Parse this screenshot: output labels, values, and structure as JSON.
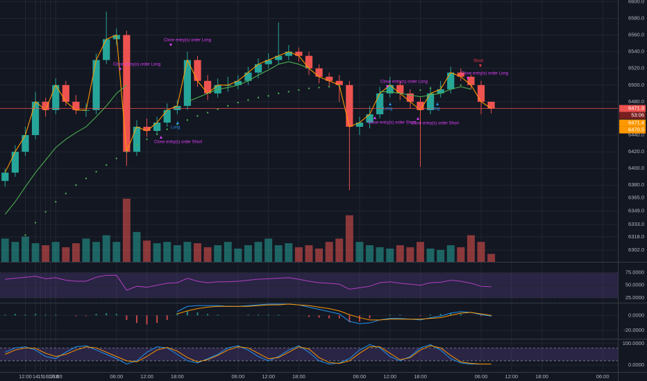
{
  "chart_data": [
    {
      "type": "candlestick",
      "x": [
        8,
        10,
        12,
        14,
        16,
        18,
        20,
        22,
        24,
        26,
        28,
        30,
        32,
        34,
        36,
        38,
        40,
        42,
        44,
        46,
        48,
        50,
        52,
        54,
        56,
        58,
        60,
        62,
        64,
        66,
        68,
        70,
        72,
        74,
        76,
        78,
        80,
        82,
        84,
        86,
        88,
        90,
        92,
        94,
        96,
        98,
        100,
        102,
        104
      ],
      "open": [
        6385,
        6395,
        6420,
        6440,
        6480,
        6470,
        6500,
        6480,
        6470,
        6470,
        6530,
        6555,
        6560,
        6420,
        6450,
        6445,
        6455,
        6470,
        6475,
        6530,
        6505,
        6490,
        6500,
        6500,
        6505,
        6515,
        6525,
        6530,
        6535,
        6540,
        6535,
        6520,
        6510,
        6505,
        6500,
        6450,
        6455,
        6465,
        6490,
        6500,
        6490,
        6480,
        6470,
        6490,
        6495,
        6515,
        6510,
        6500,
        6480
      ],
      "high": [
        6400,
        6428,
        6450,
        6492,
        6485,
        6508,
        6505,
        6488,
        6478,
        6538,
        6588,
        6568,
        6565,
        6458,
        6460,
        6462,
        6478,
        6482,
        6540,
        6535,
        6512,
        6508,
        6510,
        6512,
        6522,
        6532,
        6538,
        6575,
        6548,
        6545,
        6540,
        6525,
        6515,
        6512,
        6505,
        6462,
        6475,
        6498,
        6510,
        6505,
        6495,
        6485,
        6498,
        6505,
        6522,
        6520,
        6512,
        6505,
        6478
      ],
      "low": [
        6378,
        6390,
        6415,
        6435,
        6462,
        6465,
        6475,
        6465,
        6462,
        6465,
        6525,
        6548,
        6403,
        6415,
        6438,
        6440,
        6450,
        6465,
        6470,
        6498,
        6482,
        6485,
        6492,
        6495,
        6500,
        6508,
        6520,
        6525,
        6530,
        6528,
        6512,
        6502,
        6498,
        6480,
        6374,
        6440,
        6448,
        6460,
        6485,
        6482,
        6472,
        6402,
        6465,
        6485,
        6490,
        6505,
        6495,
        6465,
        6466
      ],
      "close": [
        6395,
        6420,
        6440,
        6480,
        6470,
        6500,
        6480,
        6470,
        6470,
        6530,
        6555,
        6560,
        6420,
        6450,
        6445,
        6455,
        6470,
        6475,
        6530,
        6505,
        6490,
        6500,
        6500,
        6505,
        6515,
        6525,
        6530,
        6535,
        6540,
        6535,
        6520,
        6510,
        6505,
        6500,
        6450,
        6455,
        6465,
        6490,
        6500,
        6490,
        6480,
        6470,
        6490,
        6495,
        6515,
        6510,
        6500,
        6480,
        6472
      ],
      "up_color": "#26a69a",
      "down_color": "#ef5350",
      "lines": [
        {
          "color": "#ff9800",
          "style": "solid",
          "values": [
            6395,
            6420,
            6440,
            6480,
            6470,
            6500,
            6480,
            6470,
            6470,
            6530,
            6555,
            6560,
            6420,
            6450,
            6445,
            6455,
            6470,
            6475,
            6530,
            6505,
            6490,
            6500,
            6500,
            6505,
            6515,
            6525,
            6530,
            6535,
            6540,
            6535,
            6520,
            6510,
            6505,
            6500,
            6450,
            6455,
            6465,
            6490,
            6500,
            6490,
            6480,
            6470,
            6490,
            6495,
            6515,
            6510,
            6500,
            6480,
            6472
          ]
        },
        {
          "color": "#4caf50",
          "style": "solid",
          "values": [
            6345,
            6360,
            6378,
            6395,
            6410,
            6425,
            6435,
            6443,
            6450,
            6462,
            6475,
            6490,
            6500,
            null,
            null,
            null,
            null,
            null,
            6480,
            6485,
            6490,
            6495,
            6497,
            6500,
            6505,
            6512,
            6518,
            6525,
            6528,
            6525,
            6520,
            null,
            null,
            null,
            null,
            null,
            null,
            6492,
            6492,
            6490,
            6488,
            6486,
            6488,
            6490,
            6495,
            6498,
            6495,
            null,
            null
          ]
        },
        {
          "color": "#4caf50",
          "style": "dotted",
          "values": [
            null,
            null,
            6320,
            6335,
            6348,
            6360,
            6370,
            6380,
            6388,
            6396,
            6404,
            6412,
            6420,
            6428,
            6435,
            6441,
            6447,
            6453,
            6458,
            6463,
            6467,
            6471,
            6475,
            6479,
            6482,
            6485,
            6487,
            6490,
            6492,
            6494,
            6496,
            6497,
            6498,
            6499,
            null,
            null,
            null,
            null,
            null,
            null,
            null,
            6494,
            6496,
            6498,
            6500,
            6500,
            null,
            null,
            null
          ]
        }
      ],
      "annotations": [
        {
          "text": "Close entry(s) order Long",
          "color": "#e040fb"
        },
        {
          "text": "Close entry(s) order Long",
          "color": "#e040fb"
        },
        {
          "text": "Close entry(s) order Long",
          "color": "#e040fb"
        },
        {
          "text": "Close entry(s) order Long",
          "color": "#e040fb"
        },
        {
          "text": "Close entry(s) order Short",
          "color": "#e040fb"
        },
        {
          "text": "Close entry(s) order Short",
          "color": "#e040fb"
        },
        {
          "text": "Close entry(s) order Short",
          "color": "#e040fb"
        },
        {
          "text": "Long",
          "color": "#2196f3"
        },
        {
          "text": "Long",
          "color": "#2196f3"
        },
        {
          "text": "Long",
          "color": "#2196f3"
        },
        {
          "text": "Short",
          "color": "#f23645"
        }
      ],
      "last_price": 6471.9,
      "countdown": "53:06",
      "price_tags": [
        6471.4,
        6470.5
      ],
      "xlim": [
        7,
        129
      ],
      "ylim": [
        6288,
        6602
      ],
      "yticks": [
        {
          "value": 6600,
          "label": "6600.0"
        },
        {
          "value": 6580,
          "label": "6580.0"
        },
        {
          "value": 6560,
          "label": "6560.0"
        },
        {
          "value": 6540,
          "label": "6540.0"
        },
        {
          "value": 6520,
          "label": "6520.0"
        },
        {
          "value": 6500,
          "label": "6500.0"
        },
        {
          "value": 6480,
          "label": "6480.0"
        },
        {
          "value": 6440,
          "label": "6440.0"
        },
        {
          "value": 6420,
          "label": "6420.0"
        },
        {
          "value": 6400,
          "label": "6400.0"
        },
        {
          "value": 6380,
          "label": "6380.0"
        },
        {
          "value": 6365,
          "label": "6365.0"
        },
        {
          "value": 6349,
          "label": "6349.0"
        },
        {
          "value": 6333,
          "label": "6333.0"
        },
        {
          "value": 6318,
          "label": "6318.0"
        },
        {
          "value": 6302,
          "label": "6302.0"
        }
      ],
      "grid": true
    },
    {
      "type": "bar",
      "x": [
        8,
        10,
        12,
        14,
        16,
        18,
        20,
        22,
        24,
        26,
        28,
        30,
        32,
        34,
        36,
        38,
        40,
        42,
        44,
        46,
        48,
        50,
        52,
        54,
        56,
        58,
        60,
        62,
        64,
        66,
        68,
        70,
        72,
        74,
        76,
        78,
        80,
        82,
        84,
        86,
        88,
        90,
        92,
        94,
        96,
        98,
        100,
        102,
        104
      ],
      "values": [
        35,
        30,
        38,
        28,
        25,
        30,
        22,
        28,
        35,
        30,
        40,
        30,
        95,
        45,
        32,
        28,
        30,
        25,
        30,
        28,
        22,
        25,
        30,
        20,
        25,
        30,
        35,
        25,
        28,
        22,
        25,
        20,
        30,
        35,
        70,
        30,
        25,
        22,
        20,
        25,
        22,
        30,
        20,
        18,
        25,
        22,
        40,
        30,
        12
      ],
      "up_color": "#26a69a",
      "down_color": "#ef5350",
      "xlim": [
        7,
        129
      ],
      "ylim": [
        0,
        100
      ]
    },
    {
      "type": "line",
      "x": [
        8,
        10,
        12,
        14,
        16,
        18,
        20,
        22,
        24,
        26,
        28,
        30,
        32,
        34,
        36,
        38,
        40,
        42,
        44,
        46,
        48,
        50,
        52,
        54,
        56,
        58,
        60,
        62,
        64,
        66,
        68,
        70,
        72,
        74,
        76,
        78,
        80,
        82,
        84,
        86,
        88,
        90,
        92,
        94,
        96,
        98,
        100,
        102,
        104
      ],
      "series": [
        {
          "color": "#b040c0",
          "values": [
            62,
            64,
            66,
            68,
            63,
            65,
            60,
            58,
            58,
            66,
            70,
            70,
            40,
            48,
            46,
            50,
            54,
            55,
            64,
            58,
            55,
            57,
            57,
            58,
            60,
            62,
            63,
            64,
            65,
            62,
            58,
            55,
            54,
            52,
            42,
            45,
            48,
            55,
            57,
            54,
            52,
            50,
            55,
            56,
            60,
            58,
            54,
            48,
            47
          ]
        }
      ],
      "band": [
        25,
        75
      ],
      "band_color": "#7e57c2",
      "xlim": [
        7,
        129
      ],
      "ylim": [
        15,
        94
      ],
      "yticks": [
        {
          "value": 75,
          "label": "75.0000"
        },
        {
          "value": 50,
          "label": "50.0000"
        },
        {
          "value": 25,
          "label": "25.0000"
        }
      ]
    },
    {
      "type": "combo",
      "x": [
        8,
        10,
        12,
        14,
        16,
        18,
        20,
        22,
        24,
        26,
        28,
        30,
        32,
        34,
        36,
        38,
        40,
        42,
        44,
        46,
        48,
        50,
        52,
        54,
        56,
        58,
        60,
        62,
        64,
        66,
        68,
        70,
        72,
        74,
        76,
        78,
        80,
        82,
        84,
        86,
        88,
        90,
        92,
        94,
        96,
        98,
        100,
        102,
        104
      ],
      "histogram": [
        1,
        2,
        1,
        2,
        1,
        1,
        0,
        -1,
        -1,
        2,
        3,
        2,
        -6,
        -10,
        -12,
        -10,
        -6,
        3,
        6,
        4,
        2,
        1,
        0,
        0,
        1,
        1,
        1,
        1,
        0,
        0,
        -2,
        -3,
        -4,
        -4,
        -9,
        -8,
        -4,
        0,
        1,
        1,
        0,
        -1,
        1,
        2,
        3,
        2,
        0,
        -1,
        -1
      ],
      "up_color": "#26a69a",
      "down_color": "#ef5350",
      "series": [
        {
          "color": "#2196f3",
          "values": [
            null,
            null,
            null,
            null,
            null,
            null,
            null,
            null,
            null,
            null,
            null,
            null,
            null,
            null,
            null,
            null,
            null,
            5,
            12,
            13,
            13,
            13,
            12,
            12,
            13,
            14,
            15,
            15,
            15,
            14,
            11,
            8,
            5,
            2,
            -8,
            -11,
            -10,
            -6,
            -4,
            -4,
            -5,
            -6,
            -3,
            -1,
            3,
            5,
            4,
            1,
            -1
          ]
        },
        {
          "color": "#ff9800",
          "values": [
            null,
            null,
            null,
            null,
            null,
            null,
            null,
            null,
            null,
            null,
            null,
            null,
            null,
            null,
            null,
            null,
            null,
            2,
            6,
            9,
            11,
            12,
            12,
            12,
            12,
            13,
            14,
            14,
            15,
            14,
            13,
            11,
            9,
            6,
            1,
            -3,
            -6,
            -6,
            -5,
            -5,
            -5,
            -5,
            -4,
            -3,
            0,
            3,
            4,
            2,
            0
          ]
        }
      ],
      "xlim": [
        7,
        129
      ],
      "ylim": [
        -31,
        15
      ],
      "yticks": [
        {
          "value": 0,
          "label": "0.0000"
        },
        {
          "value": -20,
          "label": "-20.0000"
        }
      ]
    },
    {
      "type": "line",
      "x": [
        8,
        10,
        12,
        14,
        16,
        18,
        20,
        22,
        24,
        26,
        28,
        30,
        32,
        34,
        36,
        38,
        40,
        42,
        44,
        46,
        48,
        50,
        52,
        54,
        56,
        58,
        60,
        62,
        64,
        66,
        68,
        70,
        72,
        74,
        76,
        78,
        80,
        82,
        84,
        86,
        88,
        90,
        92,
        94,
        96,
        98,
        100,
        102,
        104
      ],
      "series": [
        {
          "color": "#2196f3",
          "values": [
            60,
            80,
            85,
            70,
            40,
            30,
            60,
            85,
            90,
            70,
            50,
            30,
            5,
            20,
            60,
            85,
            80,
            50,
            20,
            10,
            30,
            50,
            80,
            90,
            70,
            40,
            20,
            40,
            70,
            90,
            60,
            20,
            5,
            10,
            30,
            70,
            95,
            80,
            40,
            20,
            40,
            80,
            95,
            70,
            30,
            10,
            5,
            5,
            5
          ]
        },
        {
          "color": "#ff9800",
          "values": [
            50,
            70,
            80,
            78,
            55,
            40,
            50,
            70,
            85,
            80,
            60,
            40,
            20,
            15,
            40,
            70,
            82,
            65,
            35,
            15,
            25,
            45,
            70,
            85,
            80,
            55,
            30,
            35,
            60,
            85,
            75,
            35,
            12,
            8,
            20,
            55,
            85,
            85,
            55,
            25,
            35,
            70,
            90,
            80,
            45,
            15,
            8,
            5,
            5
          ]
        }
      ],
      "band": [
        20,
        80
      ],
      "band_color": "#7e57c2",
      "xlim": [
        7,
        129
      ],
      "ylim": [
        -32,
        116
      ],
      "yticks": [
        {
          "value": 100,
          "label": "100.0000"
        },
        {
          "value": 0,
          "label": "0.0000"
        }
      ],
      "xticks": [
        {
          "value": 12,
          "label": "12:00"
        },
        {
          "value": 18,
          "label": "18:00"
        },
        14,
        {
          "value": 30,
          "label": "06:00"
        },
        {
          "value": 36,
          "label": "12:00"
        },
        {
          "value": 42,
          "label": "18:00"
        },
        15,
        {
          "value": 54,
          "label": "06:00"
        },
        {
          "value": 60,
          "label": "12:00"
        },
        {
          "value": 66,
          "label": "18:00"
        },
        16,
        {
          "value": 78,
          "label": "06:00"
        },
        {
          "value": 84,
          "label": "12:00"
        },
        {
          "value": 90,
          "label": "18:00"
        },
        17,
        {
          "value": 102,
          "label": "06:00"
        },
        {
          "value": 108,
          "label": "12:00"
        },
        {
          "value": 114,
          "label": "18:00"
        },
        18,
        {
          "value": 126,
          "label": "06:00"
        }
      ]
    }
  ]
}
